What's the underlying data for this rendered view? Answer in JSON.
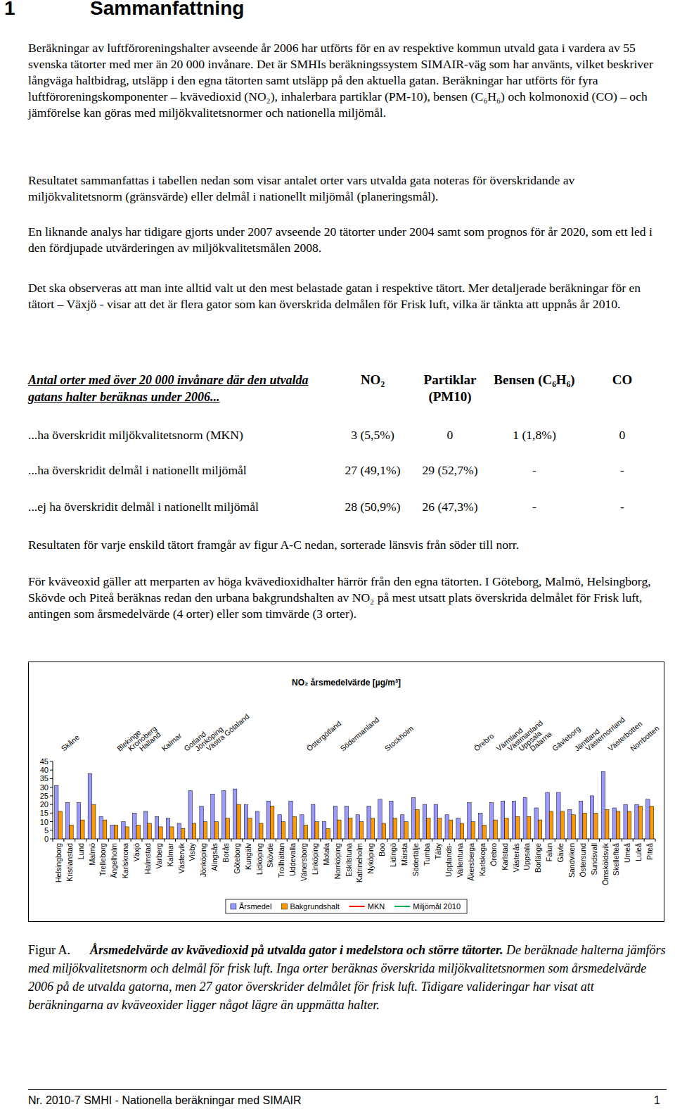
{
  "document": {
    "heading": {
      "number": "1",
      "title": "Sammanfattning"
    },
    "paragraphs": [
      "Beräkningar av luftföroreningshalter avseende år 2006 har utförts för en av respektive kommun utvald gata i vardera av 55 svenska tätorter med mer än 20 000 invånare. Det är SMHIs beräkningssystem SIMAIR-väg som har använts, vilket beskriver långväga haltbidrag, utsläpp i den egna tätorten samt utsläpp på den aktuella gatan. Beräkningar har utförts för fyra luftföroreningskomponenter – kvävedioxid (NO₂), inhalerbara partiklar (PM-10), bensen (C₆H₆) och kolmonoxid (CO) – och jämförelse kan göras med miljökvalitetsnormer och nationella miljömål.",
      "Resultatet sammanfattas i tabellen nedan som visar antalet orter vars utvalda gata noteras för överskridande av miljökvalitetsnorm (gränsvärde) eller delmål i nationellt miljömål (planeringsmål).",
      "En liknande analys har tidigare gjorts under 2007 avseende 20 tätorter under 2004 samt som prognos för år 2020, som ett led i den fördjupade utvärderingen av miljökvalitetsmålen 2008.",
      "Det ska observeras att man inte alltid valt ut den mest belastade gatan i respektive tätort. Mer detaljerade beräkningar för en tätort – Växjö - visar att det är flera gator som kan överskrida delmålen för Frisk luft, vilka är tänkta att uppnås år 2010."
    ],
    "table": {
      "header": [
        "Antal orter med över 20 000 invånare där den utvalda gatans halter beräknas under 2006...",
        "NO₂",
        "Partiklar (PM10)",
        "Bensen (C₆H₆)",
        "CO"
      ],
      "rows": [
        [
          "...ha överskridit miljökvalitetsnorm (MKN)",
          "3 (5,5%)",
          "0",
          "1 (1,8%)",
          "0"
        ],
        [
          "...ha överskridit delmål i nationellt miljömål",
          "27 (49,1%)",
          "29 (52,7%)",
          "-",
          "-"
        ],
        [
          "...ej ha överskridit delmål i nationellt miljömål",
          "28 (50,9%)",
          "26 (47,3%)",
          "-",
          "-"
        ]
      ]
    },
    "paragraphs_after": [
      "Resultaten för varje enskild tätort framgår av figur A-C nedan, sorterade länsvis från söder till norr.",
      "För kväveoxid gäller att merparten av höga kvävedioxidhalter härrör från den egna tätorten. I Göteborg, Malmö, Helsingborg, Skövde och Piteå beräknas redan den urbana bakgrundshalten av NO₂ på mest utsatt plats överskrida delmålet för Frisk luft, antingen som årsmedelvärde (4 orter) eller som timvärde (3 orter)."
    ],
    "caption": {
      "label": "Figur A.",
      "title": "Årsmedelvärde av kvävedioxid på utvalda gator i medelstora och större tätorter.",
      "text": "De beräknade halterna jämförs med miljökvalitetsnorm och delmål för frisk luft. Inga orter beräknas överskrida miljökvalitetsnormen som årsmedelvärde 2006 på de utvalda gatorna, men 27 gator överskrider delmålet för frisk luft. Tidigare valideringar har visat att beräkningarna av kväveoxider ligger något lägre än uppmätta halter."
    },
    "footer": {
      "text": "Nr. 2010-7 SMHI - Nationella beräkningar med SIMAIR",
      "page": "1"
    }
  },
  "chart_data": {
    "type": "bar",
    "title": "NO₂ årsmedelvärde [µg/m³]",
    "categories": [
      "Helsingborg",
      "Kristianstad",
      "Lund",
      "Malmö",
      "Trelleborg",
      "Ängelholm",
      "Karlskrona",
      "Växjö",
      "Halmstad",
      "Varberg",
      "Kalmar",
      "Västervik",
      "Visby",
      "Jönköping",
      "Alingsås",
      "Borås",
      "Göteborg",
      "Kungälv",
      "Lidköping",
      "Skövde",
      "Trollhättan",
      "Uddevalla",
      "Vänersborg",
      "Linköping",
      "Motala",
      "Norrköping",
      "Eskilstuna",
      "Katrineholm",
      "Nyköping",
      "Boo",
      "Lidingö",
      "Märsta",
      "Södertälje",
      "Tumba",
      "Täby",
      "Upplands-",
      "Vallentuna",
      "Åkersberga",
      "Karlskoga",
      "Örebro",
      "Karlstad",
      "Västerås",
      "Uppsala",
      "Borlänge",
      "Falun",
      "Gävle",
      "Sandviken",
      "Östersund",
      "Sundsvall",
      "Örnsköldsvik",
      "Skellefteå",
      "Umeå",
      "Luleå",
      "Piteå"
    ],
    "series": [
      {
        "name": "Årsmedel",
        "color": "#9999ff",
        "values": [
          31,
          21,
          21,
          38,
          13,
          8,
          10,
          15,
          16,
          13,
          12,
          9,
          28,
          19,
          26,
          28,
          29,
          20,
          16,
          22,
          14,
          22,
          14,
          20,
          10,
          19,
          19,
          14,
          19,
          23,
          22,
          14,
          24,
          20,
          20,
          14,
          12,
          21,
          15,
          21,
          22,
          22,
          24,
          18,
          27,
          27,
          17,
          22,
          25,
          39,
          18,
          20,
          20,
          23
        ]
      },
      {
        "name": "Bakgrundshalt",
        "color": "#ff9900",
        "values": [
          16,
          8,
          11,
          20,
          11,
          8,
          7,
          8,
          9,
          7,
          7,
          6,
          9,
          10,
          10,
          12,
          20,
          12,
          9,
          19,
          10,
          13,
          8,
          10,
          6,
          11,
          12,
          10,
          12,
          9,
          12,
          10,
          17,
          12,
          12,
          11,
          9,
          10,
          8,
          11,
          12,
          13,
          13,
          11,
          16,
          16,
          14,
          15,
          15,
          17,
          16,
          16,
          19,
          19
        ]
      }
    ],
    "legend_lines": [
      {
        "name": "MKN",
        "color": "#ff0000"
      },
      {
        "name": "Miljömål 2010",
        "color": "#00b050"
      }
    ],
    "regions": [
      {
        "label": "Skåne",
        "start": 1
      },
      {
        "label": "Blekinge",
        "start": 6
      },
      {
        "label": "Kronoberg",
        "start": 7
      },
      {
        "label": "Halland",
        "start": 8
      },
      {
        "label": "Kalmar",
        "start": 10
      },
      {
        "label": "Gotland",
        "start": 12
      },
      {
        "label": "Jönköping",
        "start": 13
      },
      {
        "label": "Västra Götaland",
        "start": 14
      },
      {
        "label": "Östergötland",
        "start": 23
      },
      {
        "label": "Södermanland",
        "start": 26
      },
      {
        "label": "Stockholm",
        "start": 30
      },
      {
        "label": "Örebro",
        "start": 38
      },
      {
        "label": "Värmland",
        "start": 40
      },
      {
        "label": "Västmanland",
        "start": 41
      },
      {
        "label": "Uppsala",
        "start": 42
      },
      {
        "label": "Dalarna",
        "start": 43
      },
      {
        "label": "Gävleborg",
        "start": 45
      },
      {
        "label": "Jämtland",
        "start": 47
      },
      {
        "label": "Västernorrland",
        "start": 48
      },
      {
        "label": "Västerbotten",
        "start": 50
      },
      {
        "label": "Norrbotten",
        "start": 52
      }
    ],
    "ylim": [
      0,
      45
    ],
    "yticks": [
      0,
      5,
      10,
      15,
      20,
      25,
      30,
      35,
      40,
      45
    ],
    "grid": false,
    "legend": "bottom"
  }
}
